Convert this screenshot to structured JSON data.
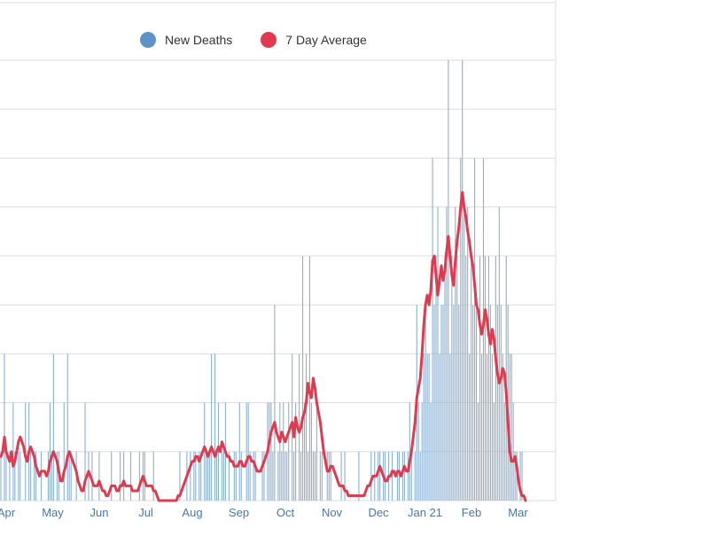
{
  "chart_data": {
    "type": "bar",
    "title": "",
    "xlabel": "",
    "ylabel": "",
    "legend_placement": "top",
    "y_step": 1,
    "ylim": [
      0,
      9
    ],
    "colors": {
      "bar": "#8ab0d3",
      "line": "#e03a4e",
      "grid": "#dddddd",
      "tick": "#4a76a8"
    },
    "legend": [
      {
        "name": "New Deaths",
        "color": "#5f93c6"
      },
      {
        "name": "7 Day Average",
        "color": "#e03a4e"
      }
    ],
    "x_ticks": [
      "Apr",
      "May",
      "Jun",
      "Jul",
      "Aug",
      "Sep",
      "Oct",
      "Nov",
      "Dec",
      "Jan 21",
      "Feb",
      "Mar"
    ],
    "series": [
      {
        "name": "New Deaths",
        "type": "bar",
        "values": [
          1,
          0,
          3,
          1,
          0,
          1,
          0,
          2,
          1,
          0,
          1,
          1,
          0,
          0,
          2,
          0,
          2,
          1,
          0,
          1,
          1,
          0,
          0,
          1,
          0,
          0,
          0,
          1,
          2,
          1,
          3,
          0,
          1,
          1,
          0,
          0,
          2,
          0,
          3,
          1,
          1,
          0,
          0,
          1,
          0,
          0,
          0,
          0,
          2,
          0,
          1,
          0,
          1,
          0,
          0,
          0,
          1,
          0,
          0,
          0,
          0,
          0,
          0,
          1,
          0,
          0,
          0,
          0,
          1,
          0,
          1,
          0,
          0,
          0,
          1,
          0,
          0,
          0,
          0,
          1,
          0,
          1,
          1,
          0,
          0,
          0,
          0,
          1,
          0,
          0,
          0,
          0,
          0,
          0,
          0,
          0,
          0,
          0,
          0,
          0,
          0,
          0,
          1,
          0,
          0,
          0,
          1,
          0,
          1,
          0,
          1,
          1,
          0,
          1,
          1,
          0,
          2,
          1,
          1,
          1,
          3,
          0,
          3,
          1,
          2,
          0,
          1,
          1,
          2,
          0,
          1,
          0,
          0,
          1,
          1,
          0,
          2,
          1,
          0,
          0,
          2,
          2,
          1,
          0,
          1,
          1,
          0,
          0,
          0,
          1,
          1,
          0,
          2,
          2,
          2,
          1,
          4,
          0,
          1,
          2,
          1,
          2,
          1,
          1,
          2,
          0,
          3,
          1,
          2,
          0,
          3,
          1,
          5,
          2,
          3,
          1,
          5,
          2,
          1,
          1,
          2,
          0,
          1,
          1,
          0,
          0,
          1,
          1,
          1,
          0,
          0,
          0,
          0,
          0,
          1,
          0,
          1,
          0,
          0,
          0,
          0,
          0,
          0,
          0,
          1,
          0,
          0,
          0,
          0,
          0,
          0,
          1,
          0,
          1,
          0,
          1,
          1,
          0,
          1,
          1,
          0,
          1,
          0,
          1,
          0,
          0,
          1,
          1,
          0,
          1,
          1,
          0,
          1,
          2,
          1,
          0,
          1,
          4,
          2,
          1,
          2,
          3,
          4,
          3,
          3,
          2,
          7,
          4,
          5,
          6,
          3,
          4,
          4,
          5,
          6,
          9,
          3,
          5,
          4,
          6,
          5,
          4,
          7,
          9,
          6,
          5,
          6,
          3,
          5,
          4,
          7,
          4,
          2,
          5,
          3,
          7,
          5,
          3,
          5,
          4,
          3,
          2,
          5,
          4,
          6,
          4,
          3,
          2,
          5,
          4,
          3,
          3,
          2,
          1,
          1,
          0,
          1,
          1,
          0,
          0
        ]
      },
      {
        "name": "7 Day Average",
        "type": "line",
        "values": [
          0.9,
          1.0,
          1.3,
          1.0,
          0.9,
          0.8,
          1.0,
          0.7,
          0.8,
          1.0,
          1.2,
          1.3,
          1.2,
          1.1,
          0.9,
          0.8,
          1.0,
          1.1,
          1.0,
          0.9,
          0.7,
          0.6,
          0.5,
          0.6,
          0.6,
          0.6,
          0.5,
          0.6,
          0.8,
          0.9,
          1.0,
          0.9,
          0.8,
          0.6,
          0.4,
          0.4,
          0.6,
          0.7,
          0.9,
          1.0,
          0.9,
          0.8,
          0.7,
          0.6,
          0.4,
          0.3,
          0.2,
          0.2,
          0.4,
          0.5,
          0.6,
          0.5,
          0.4,
          0.3,
          0.3,
          0.3,
          0.4,
          0.3,
          0.2,
          0.2,
          0.1,
          0.1,
          0.2,
          0.3,
          0.3,
          0.3,
          0.2,
          0.2,
          0.3,
          0.3,
          0.4,
          0.3,
          0.3,
          0.3,
          0.3,
          0.2,
          0.2,
          0.2,
          0.2,
          0.3,
          0.4,
          0.5,
          0.4,
          0.3,
          0.3,
          0.3,
          0.3,
          0.2,
          0.2,
          0.1,
          0.0,
          0.0,
          0.0,
          0.0,
          0.0,
          0.0,
          0.0,
          0.0,
          0.0,
          0.0,
          0.0,
          0.1,
          0.1,
          0.2,
          0.3,
          0.4,
          0.5,
          0.6,
          0.7,
          0.8,
          0.8,
          0.9,
          0.9,
          0.8,
          0.9,
          1.0,
          1.1,
          1.0,
          0.9,
          1.0,
          1.1,
          1.0,
          0.9,
          1.0,
          1.1,
          1.0,
          1.2,
          1.1,
          1.0,
          0.9,
          0.9,
          0.8,
          0.8,
          0.7,
          0.7,
          0.7,
          0.8,
          0.8,
          0.7,
          0.7,
          0.8,
          0.9,
          0.9,
          0.8,
          0.8,
          0.7,
          0.6,
          0.6,
          0.6,
          0.7,
          0.8,
          0.9,
          1.0,
          1.2,
          1.4,
          1.5,
          1.6,
          1.4,
          1.3,
          1.2,
          1.4,
          1.3,
          1.2,
          1.3,
          1.4,
          1.5,
          1.6,
          1.3,
          1.7,
          1.5,
          1.4,
          1.5,
          1.7,
          1.8,
          2.0,
          2.4,
          2.2,
          2.1,
          2.5,
          2.3,
          2.0,
          1.8,
          1.6,
          1.3,
          1.0,
          0.8,
          0.6,
          0.6,
          0.7,
          0.7,
          0.6,
          0.5,
          0.4,
          0.3,
          0.3,
          0.3,
          0.2,
          0.2,
          0.1,
          0.1,
          0.1,
          0.1,
          0.1,
          0.1,
          0.1,
          0.1,
          0.1,
          0.1,
          0.2,
          0.3,
          0.3,
          0.4,
          0.5,
          0.5,
          0.5,
          0.6,
          0.7,
          0.6,
          0.5,
          0.4,
          0.4,
          0.5,
          0.5,
          0.6,
          0.6,
          0.5,
          0.6,
          0.6,
          0.5,
          0.6,
          0.7,
          0.6,
          0.6,
          0.8,
          1.0,
          1.3,
          1.6,
          2.1,
          2.3,
          2.5,
          3.0,
          3.6,
          4.0,
          4.2,
          4.0,
          4.3,
          4.9,
          5.0,
          4.6,
          4.2,
          4.5,
          4.8,
          4.5,
          4.7,
          5.1,
          5.4,
          5.0,
          4.6,
          4.4,
          4.9,
          5.3,
          5.6,
          6.0,
          6.3,
          6.0,
          5.8,
          5.5,
          5.3,
          5.0,
          4.8,
          4.4,
          4.0,
          3.9,
          3.6,
          3.4,
          3.6,
          3.9,
          3.7,
          3.4,
          3.2,
          3.5,
          3.3,
          2.9,
          2.6,
          2.4,
          2.5,
          2.7,
          2.6,
          2.2,
          1.6,
          1.0,
          0.8,
          0.8,
          0.9,
          0.7,
          0.4,
          0.2,
          0.1,
          0.1,
          0.0
        ]
      }
    ]
  }
}
